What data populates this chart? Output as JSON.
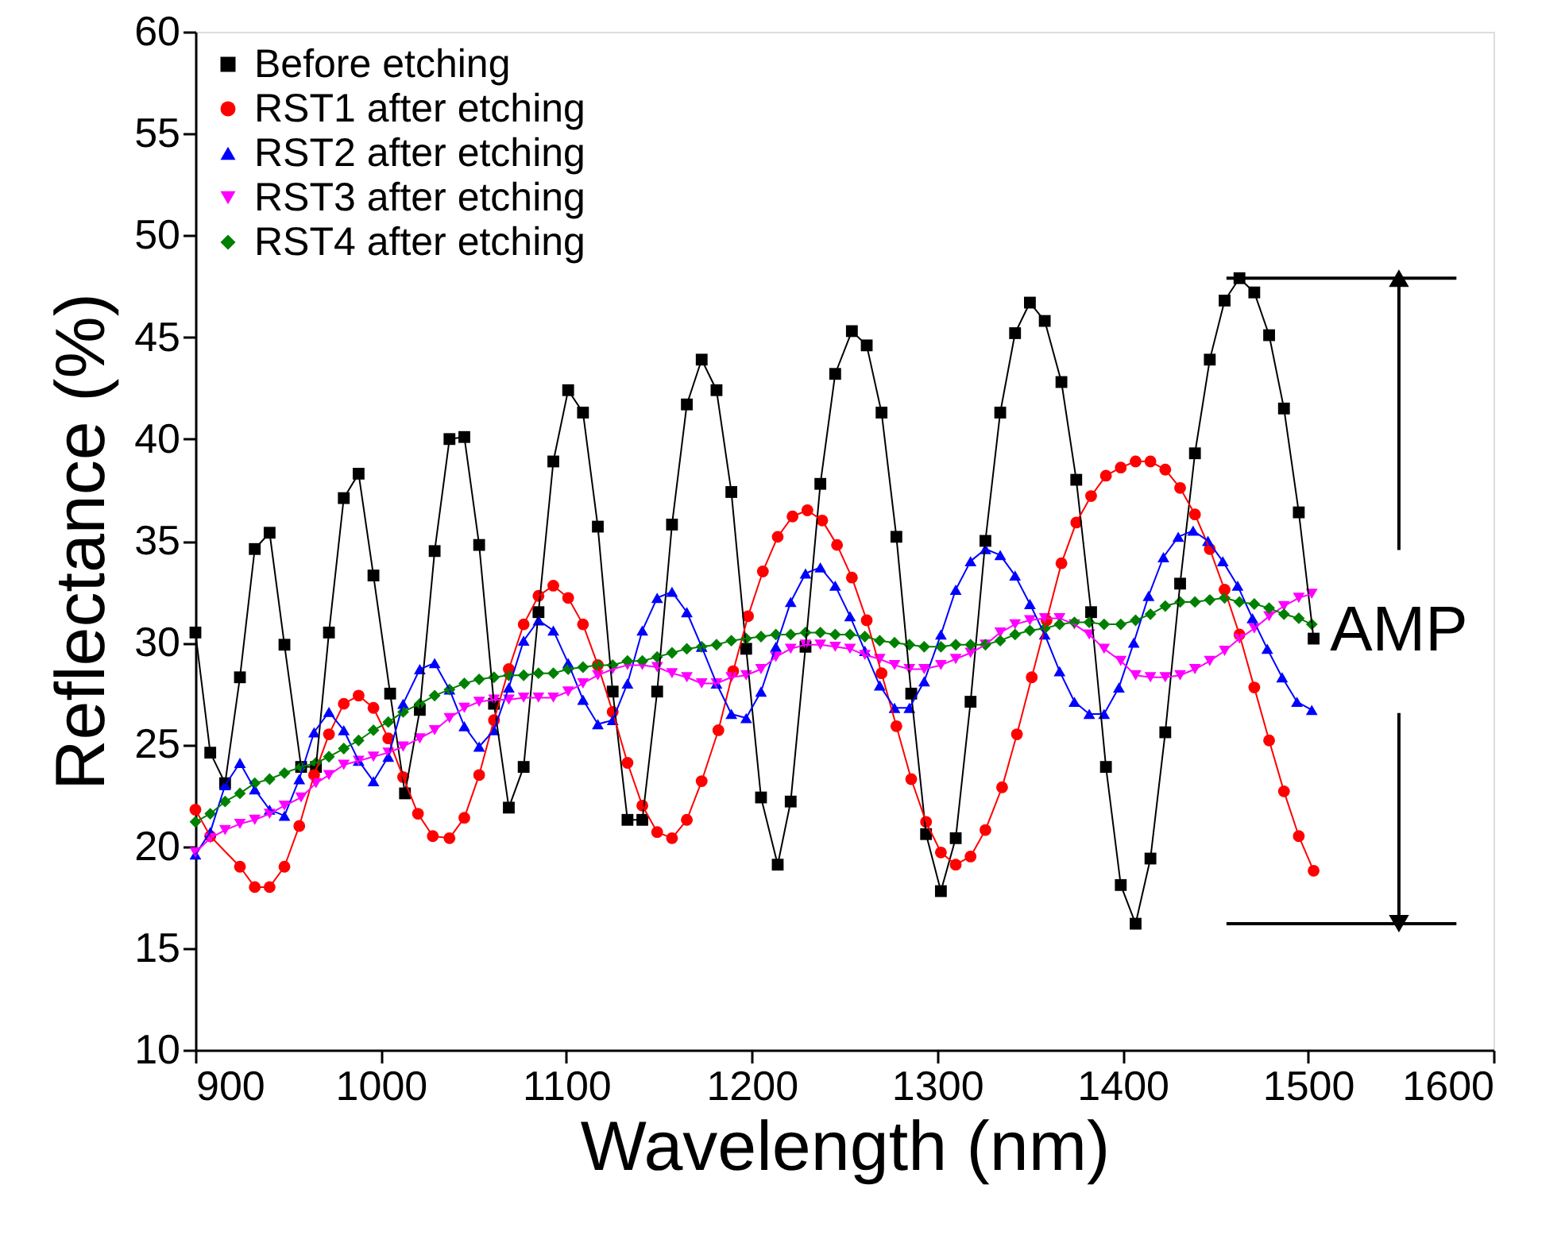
{
  "chart_data": {
    "type": "line",
    "xlabel": "Wavelength (nm)",
    "ylabel": "Reflectance (%)",
    "xlim": [
      900,
      1600
    ],
    "xticks": [
      900,
      1000,
      1100,
      1200,
      1300,
      1400,
      1500,
      1600
    ],
    "ylim": [
      10,
      60
    ],
    "yticks": [
      10,
      15,
      20,
      25,
      30,
      35,
      40,
      45,
      50,
      55,
      60
    ],
    "grid": false,
    "legend": "top left",
    "line_style": "solid",
    "annotations": [
      "AMP"
    ],
    "ref_lines": [
      {
        "axis": "y",
        "value": 47.9,
        "color": "#000000"
      },
      {
        "axis": "y",
        "value": 16.2,
        "color": "#000000"
      }
    ],
    "series": [
      {
        "name": "Before etching",
        "color": "#000000",
        "marker": "square",
        "x": [
          900,
          908,
          916,
          924,
          932,
          940,
          948,
          957,
          965,
          972,
          980,
          988,
          996,
          1005,
          1013,
          1021,
          1029,
          1037,
          1045,
          1053,
          1061,
          1069,
          1077,
          1085,
          1093,
          1101,
          1109,
          1117,
          1125,
          1133,
          1141,
          1149,
          1157,
          1165,
          1173,
          1181,
          1189,
          1197,
          1205,
          1214,
          1221,
          1229,
          1237,
          1245,
          1254,
          1262,
          1270,
          1278,
          1286,
          1294,
          1302,
          1310,
          1318,
          1326,
          1334,
          1342,
          1350,
          1358,
          1367,
          1375,
          1383,
          1391,
          1399,
          1407,
          1415,
          1423,
          1431,
          1439,
          1447,
          1455,
          1463,
          1471,
          1479,
          1487,
          1495,
          1503
        ],
        "values": [
          30.5,
          24.6,
          23.1,
          28.3,
          34.6,
          35.4,
          29.9,
          23.9,
          23.9,
          30.5,
          37.1,
          38.3,
          33.3,
          27.5,
          22.6,
          26.7,
          34.5,
          40.0,
          40.1,
          34.8,
          27.0,
          21.9,
          23.9,
          31.5,
          38.9,
          42.4,
          41.3,
          35.7,
          27.6,
          21.3,
          21.3,
          27.6,
          35.8,
          41.7,
          43.9,
          42.4,
          37.4,
          29.7,
          22.4,
          19.1,
          22.2,
          29.8,
          37.8,
          43.2,
          45.3,
          44.6,
          41.3,
          35.2,
          27.5,
          20.6,
          17.8,
          20.4,
          27.1,
          35.0,
          41.3,
          45.2,
          46.7,
          45.8,
          42.8,
          38.0,
          31.5,
          23.9,
          18.1,
          16.2,
          19.4,
          25.6,
          32.9,
          39.3,
          43.9,
          46.8,
          47.9,
          47.2,
          45.1,
          41.5,
          36.4,
          30.2
        ]
      },
      {
        "name": "RST1 after etching",
        "color": "#ff0000",
        "marker": "circle",
        "x": [
          900,
          908,
          924,
          932,
          940,
          948,
          956,
          964,
          972,
          980,
          988,
          996,
          1004,
          1012,
          1020,
          1028,
          1037,
          1045,
          1053,
          1061,
          1069,
          1077,
          1085,
          1093,
          1101,
          1109,
          1117,
          1125,
          1133,
          1141,
          1149,
          1157,
          1165,
          1173,
          1182,
          1190,
          1198,
          1206,
          1214,
          1222,
          1230,
          1238,
          1246,
          1254,
          1262,
          1270,
          1278,
          1286,
          1294,
          1302,
          1310,
          1318,
          1326,
          1335,
          1343,
          1351,
          1359,
          1367,
          1375,
          1383,
          1391,
          1399,
          1407,
          1415,
          1423,
          1431,
          1439,
          1447,
          1455,
          1463,
          1471,
          1479,
          1487,
          1495,
          1503
        ],
        "values": [
          21.8,
          20.5,
          19.0,
          18.0,
          18.0,
          19.0,
          21.0,
          23.5,
          25.5,
          27.0,
          27.4,
          26.8,
          25.3,
          23.4,
          21.6,
          20.5,
          20.4,
          21.4,
          23.5,
          26.2,
          28.7,
          30.9,
          32.3,
          32.8,
          32.2,
          30.9,
          28.9,
          26.6,
          24.1,
          22.0,
          20.7,
          20.4,
          21.3,
          23.2,
          25.7,
          28.6,
          31.3,
          33.5,
          35.2,
          36.2,
          36.5,
          36.0,
          34.8,
          33.2,
          31.1,
          28.5,
          25.9,
          23.3,
          21.2,
          19.7,
          19.1,
          19.5,
          20.8,
          22.9,
          25.5,
          28.3,
          31.1,
          33.9,
          35.9,
          37.2,
          38.2,
          38.6,
          38.9,
          38.9,
          38.5,
          37.6,
          36.3,
          34.6,
          32.6,
          30.4,
          27.8,
          25.2,
          22.7,
          20.5,
          18.8
        ]
      },
      {
        "name": "RST2 after etching",
        "color": "#0000ff",
        "marker": "triangle",
        "x": [
          900,
          908,
          916,
          924,
          932,
          940,
          948,
          956,
          964,
          972,
          980,
          988,
          996,
          1004,
          1012,
          1021,
          1029,
          1037,
          1045,
          1053,
          1061,
          1069,
          1077,
          1085,
          1093,
          1101,
          1109,
          1117,
          1125,
          1133,
          1141,
          1149,
          1157,
          1165,
          1173,
          1181,
          1189,
          1197,
          1205,
          1213,
          1221,
          1229,
          1237,
          1245,
          1253,
          1261,
          1269,
          1277,
          1285,
          1293,
          1302,
          1310,
          1318,
          1326,
          1334,
          1342,
          1350,
          1358,
          1366,
          1374,
          1382,
          1390,
          1398,
          1406,
          1414,
          1422,
          1430,
          1438,
          1446,
          1454,
          1462,
          1470,
          1478,
          1486,
          1494,
          1502
        ],
        "values": [
          19.6,
          20.7,
          23.0,
          24.1,
          22.8,
          21.8,
          21.5,
          23.3,
          25.6,
          26.6,
          25.7,
          24.2,
          23.2,
          24.4,
          27.0,
          28.7,
          29.0,
          27.7,
          25.9,
          24.9,
          25.7,
          27.8,
          30.1,
          31.1,
          30.6,
          29.0,
          27.2,
          26.0,
          26.2,
          28.0,
          30.6,
          32.2,
          32.5,
          31.5,
          29.8,
          28.0,
          26.5,
          26.3,
          27.6,
          29.8,
          32.0,
          33.4,
          33.7,
          32.8,
          31.3,
          29.6,
          27.9,
          26.8,
          26.8,
          28.1,
          30.4,
          32.6,
          34.0,
          34.6,
          34.3,
          33.3,
          31.9,
          30.4,
          28.6,
          27.1,
          26.5,
          26.5,
          27.8,
          30.0,
          32.3,
          34.2,
          35.2,
          35.5,
          35.0,
          34.0,
          32.8,
          31.2,
          29.7,
          28.3,
          27.1,
          26.7
        ]
      },
      {
        "name": "RST3 after etching",
        "color": "#ff00ff",
        "marker": "triangle-down",
        "x": [
          900,
          908,
          916,
          924,
          932,
          940,
          948,
          957,
          965,
          972,
          980,
          988,
          996,
          1004,
          1012,
          1021,
          1029,
          1037,
          1045,
          1053,
          1061,
          1069,
          1077,
          1085,
          1093,
          1101,
          1109,
          1117,
          1125,
          1133,
          1141,
          1149,
          1157,
          1165,
          1173,
          1181,
          1189,
          1197,
          1205,
          1213,
          1221,
          1229,
          1237,
          1245,
          1253,
          1261,
          1269,
          1277,
          1285,
          1293,
          1302,
          1310,
          1318,
          1326,
          1334,
          1342,
          1350,
          1358,
          1366,
          1374,
          1382,
          1390,
          1399,
          1407,
          1415,
          1423,
          1431,
          1439,
          1447,
          1455,
          1463,
          1471,
          1479,
          1487,
          1495,
          1502
        ],
        "values": [
          19.7,
          20.4,
          20.8,
          21.1,
          21.3,
          21.6,
          22.0,
          22.4,
          23.1,
          23.5,
          24.0,
          24.2,
          24.4,
          24.6,
          24.9,
          25.3,
          25.7,
          26.3,
          26.8,
          27.1,
          27.2,
          27.2,
          27.3,
          27.3,
          27.3,
          27.6,
          28.0,
          28.4,
          28.7,
          28.9,
          28.9,
          28.8,
          28.5,
          28.3,
          28.0,
          28.0,
          28.3,
          28.4,
          28.7,
          29.3,
          29.7,
          29.9,
          29.9,
          29.8,
          29.7,
          29.4,
          29.2,
          28.9,
          28.7,
          28.7,
          28.9,
          29.2,
          29.5,
          29.9,
          30.5,
          30.9,
          31.1,
          31.2,
          31.2,
          30.9,
          30.4,
          29.7,
          29.1,
          28.4,
          28.3,
          28.3,
          28.4,
          28.7,
          29.1,
          29.6,
          30.2,
          30.7,
          31.3,
          31.8,
          32.2,
          32.4
        ]
      },
      {
        "name": "RST4 after etching",
        "color": "#008000",
        "marker": "diamond",
        "x": [
          900,
          908,
          916,
          924,
          932,
          940,
          948,
          957,
          965,
          972,
          980,
          988,
          996,
          1004,
          1012,
          1021,
          1029,
          1037,
          1045,
          1053,
          1061,
          1069,
          1077,
          1085,
          1093,
          1101,
          1109,
          1117,
          1125,
          1133,
          1141,
          1149,
          1157,
          1165,
          1173,
          1181,
          1189,
          1197,
          1205,
          1213,
          1221,
          1229,
          1237,
          1245,
          1253,
          1261,
          1269,
          1277,
          1285,
          1293,
          1302,
          1310,
          1318,
          1326,
          1334,
          1342,
          1350,
          1358,
          1366,
          1374,
          1382,
          1390,
          1399,
          1407,
          1415,
          1423,
          1431,
          1439,
          1447,
          1455,
          1463,
          1471,
          1479,
          1487,
          1495,
          1502
        ],
        "values": [
          21.2,
          21.6,
          22.2,
          22.6,
          23.1,
          23.3,
          23.6,
          23.9,
          24.1,
          24.4,
          24.8,
          25.2,
          25.7,
          26.1,
          26.6,
          27.0,
          27.4,
          27.7,
          28.0,
          28.2,
          28.3,
          28.4,
          28.4,
          28.5,
          28.5,
          28.7,
          28.8,
          28.9,
          28.9,
          29.1,
          29.1,
          29.3,
          29.5,
          29.7,
          29.8,
          29.9,
          30.1,
          30.2,
          30.3,
          30.4,
          30.4,
          30.5,
          30.5,
          30.4,
          30.4,
          30.3,
          30.1,
          30.0,
          29.9,
          29.8,
          29.8,
          29.9,
          29.9,
          29.9,
          30.1,
          30.4,
          30.6,
          30.7,
          30.9,
          31.0,
          31.0,
          30.9,
          30.9,
          31.1,
          31.4,
          31.8,
          32.0,
          32.0,
          32.1,
          32.2,
          32.0,
          31.9,
          31.7,
          31.4,
          31.2,
          30.9
        ]
      }
    ]
  }
}
